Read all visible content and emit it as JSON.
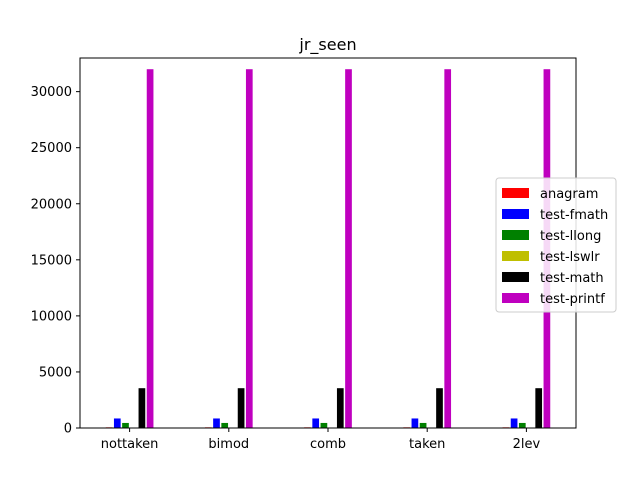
{
  "chart_data": {
    "type": "bar",
    "title": "jr_seen",
    "xlabel": "",
    "ylabel": "",
    "categories": [
      "nottaken",
      "bimod",
      "comb",
      "taken",
      "2lev"
    ],
    "ylim": [
      0,
      33000
    ],
    "yticks": [
      0,
      5000,
      10000,
      15000,
      20000,
      25000,
      30000
    ],
    "grid": false,
    "legend_position": "center-right",
    "series": [
      {
        "name": "anagram",
        "color": "#ff0000",
        "values": [
          60,
          60,
          60,
          60,
          60
        ]
      },
      {
        "name": "test-fmath",
        "color": "#0000ff",
        "values": [
          850,
          850,
          850,
          850,
          850
        ]
      },
      {
        "name": "test-llong",
        "color": "#008000",
        "values": [
          450,
          450,
          450,
          450,
          450
        ]
      },
      {
        "name": "test-lswlr",
        "color": "#bfbf00",
        "values": [
          30,
          30,
          30,
          30,
          30
        ]
      },
      {
        "name": "test-math",
        "color": "#000000",
        "values": [
          3550,
          3550,
          3550,
          3550,
          3550
        ]
      },
      {
        "name": "test-printf",
        "color": "#bf00bf",
        "values": [
          32000,
          32000,
          32000,
          32000,
          32000
        ]
      }
    ]
  }
}
